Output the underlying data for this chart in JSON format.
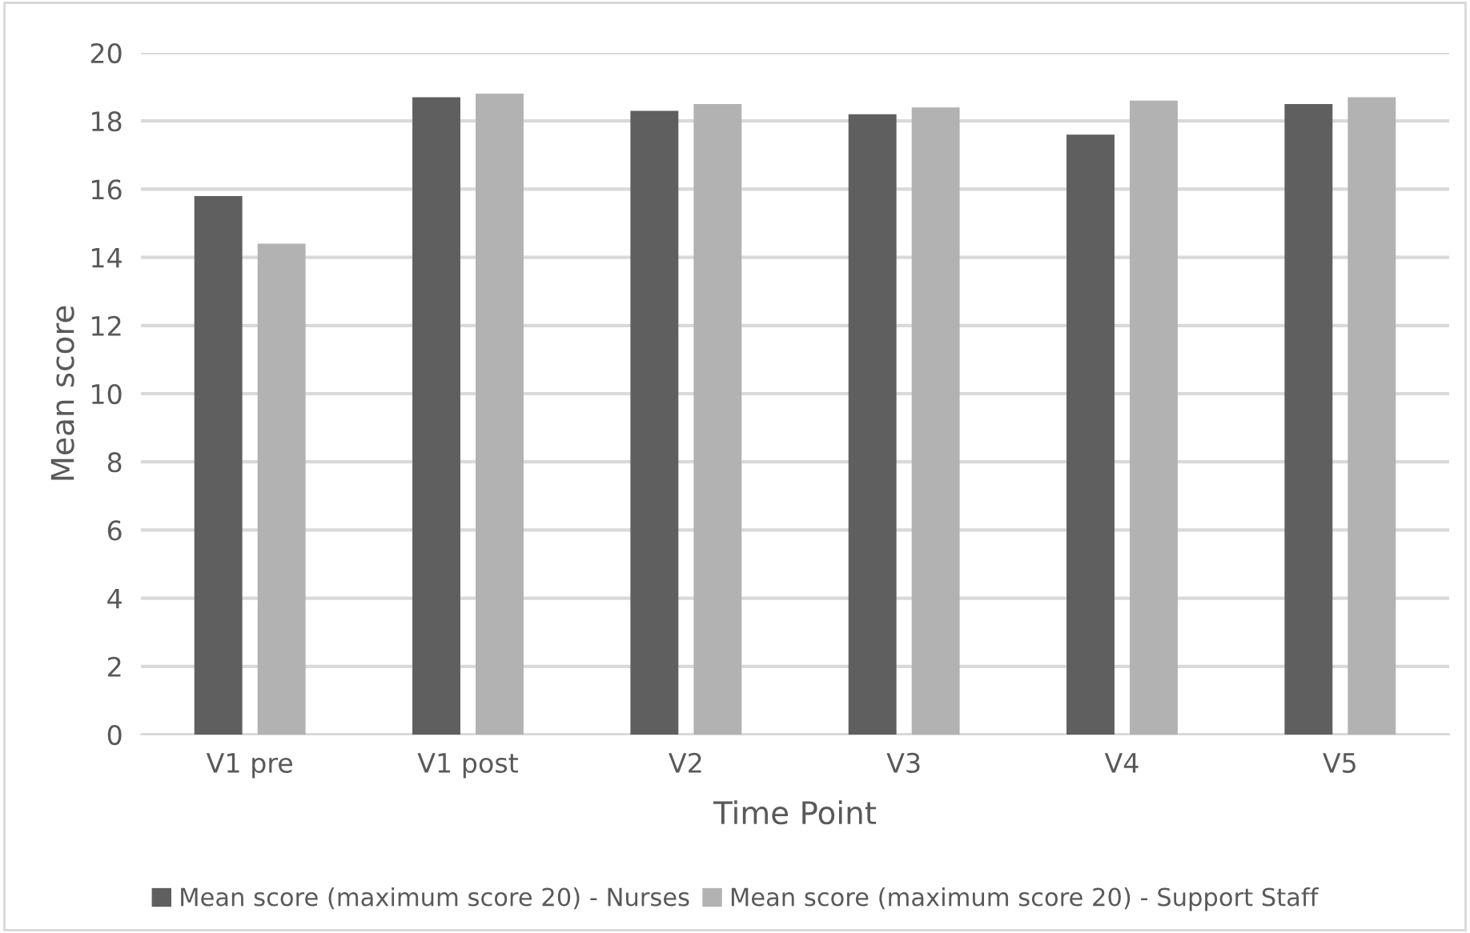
{
  "chart_data": {
    "type": "bar",
    "xlabel": "Time Point",
    "ylabel": "Mean score",
    "categories": [
      "V1 pre",
      "V1 post",
      "V2",
      "V3",
      "V4",
      "V5"
    ],
    "series": [
      {
        "name": "Mean score (maximum score 20) - Nurses",
        "color": "#5f5f5f",
        "values": [
          15.8,
          18.7,
          18.3,
          18.2,
          17.6,
          18.5
        ]
      },
      {
        "name": "Mean score (maximum score 20) - Support Staff",
        "color": "#b2b2b2",
        "values": [
          14.4,
          18.8,
          18.5,
          18.4,
          18.6,
          18.7
        ]
      }
    ],
    "ylim": [
      0,
      20
    ],
    "yticks": [
      0,
      2,
      4,
      6,
      8,
      10,
      12,
      14,
      16,
      18,
      20
    ],
    "grid": "y",
    "legend": "bottom"
  }
}
